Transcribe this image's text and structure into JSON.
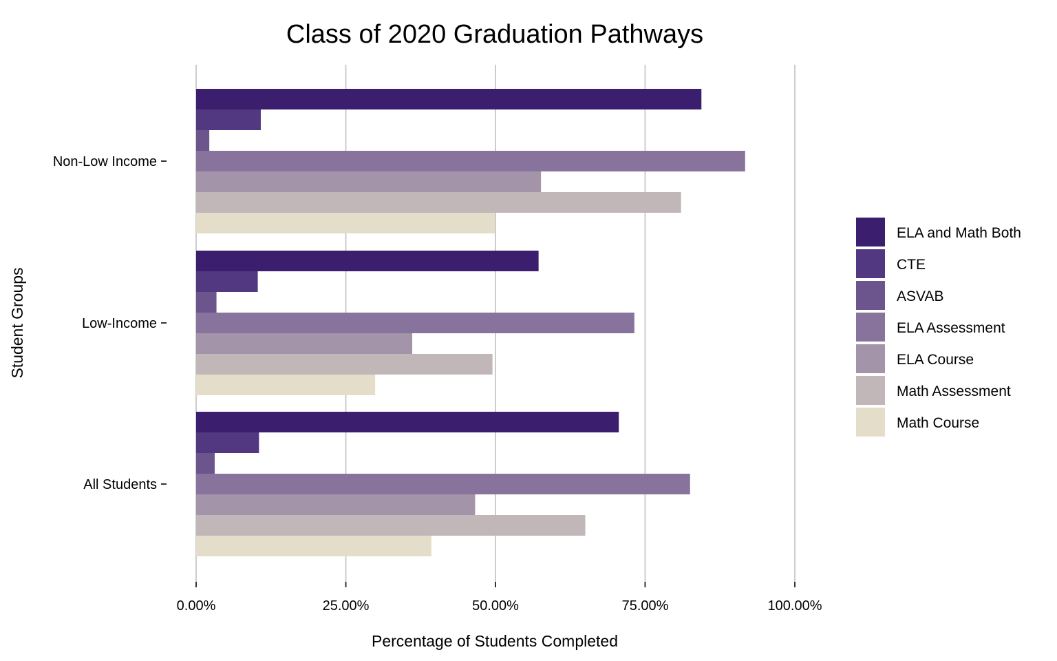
{
  "chart_data": {
    "type": "bar",
    "orientation": "horizontal",
    "title": "Class of 2020 Graduation Pathways",
    "xlabel": "Percentage of Students Completed",
    "ylabel": "Student Groups",
    "xlim": [
      0,
      100
    ],
    "x_ticks": [
      0,
      25,
      50,
      75,
      100
    ],
    "x_tick_labels": [
      "0.00%",
      "25.00%",
      "50.00%",
      "75.00%",
      "100.00%"
    ],
    "grid": "vertical major lines",
    "legend_position": "right",
    "categories": [
      "Non-Low Income",
      "Low-Income",
      "All Students"
    ],
    "series": [
      {
        "name": "ELA and Math Both",
        "color": "#3b1e6e",
        "values": [
          84.4,
          57.2,
          70.6
        ]
      },
      {
        "name": "CTE",
        "color": "#523880",
        "values": [
          10.8,
          10.3,
          10.5
        ]
      },
      {
        "name": "ASVAB",
        "color": "#6c548c",
        "values": [
          2.2,
          3.4,
          3.1
        ]
      },
      {
        "name": "ELA Assessment",
        "color": "#87739c",
        "values": [
          91.7,
          73.2,
          82.5
        ]
      },
      {
        "name": "ELA Course",
        "color": "#a394a9",
        "values": [
          57.6,
          36.1,
          46.6
        ]
      },
      {
        "name": "Math Assessment",
        "color": "#c1b7b8",
        "values": [
          81.0,
          49.5,
          65.0
        ]
      },
      {
        "name": "Math Course",
        "color": "#e3ddca",
        "values": [
          49.9,
          29.9,
          39.3
        ]
      }
    ]
  }
}
